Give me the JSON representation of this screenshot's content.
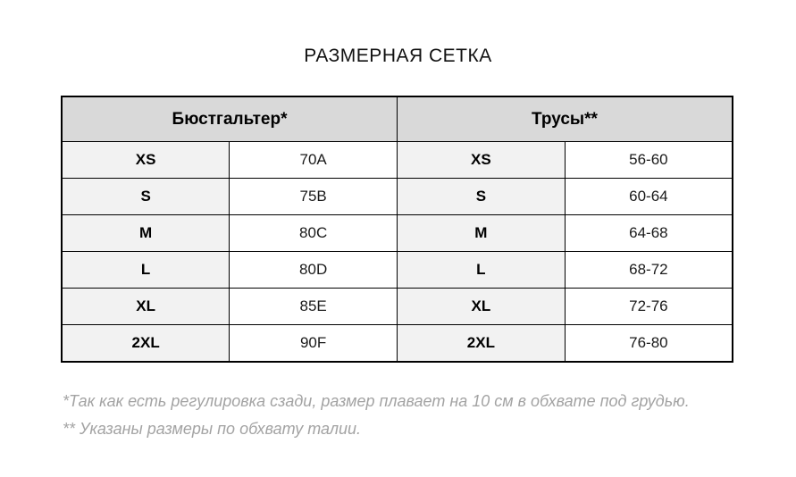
{
  "title": "РАЗМЕРНАЯ СЕТКА",
  "table": {
    "headers": [
      "Бюстгальтер*",
      "Трусы**"
    ],
    "rows": [
      {
        "cells": [
          "XS",
          "70A",
          "XS",
          "56-60"
        ]
      },
      {
        "cells": [
          "S",
          "75B",
          "S",
          "60-64"
        ]
      },
      {
        "cells": [
          "M",
          "80C",
          "M",
          "64-68"
        ]
      },
      {
        "cells": [
          "L",
          "80D",
          "L",
          "68-72"
        ]
      },
      {
        "cells": [
          "XL",
          "85E",
          "XL",
          "72-76"
        ]
      },
      {
        "cells": [
          "2XL",
          "90F",
          "2XL",
          "76-80"
        ]
      }
    ]
  },
  "footnotes": [
    "*Так как есть регулировка сзади, размер плавает на 10 см в обхвате под грудью.",
    "** Указаны размеры по обхвату талии."
  ],
  "colors": {
    "header_bg": "#d9d9d9",
    "size_label_bg": "#f2f2f2",
    "border": "#000000",
    "footnote_text": "#a3a3a3",
    "text": "#111111"
  }
}
